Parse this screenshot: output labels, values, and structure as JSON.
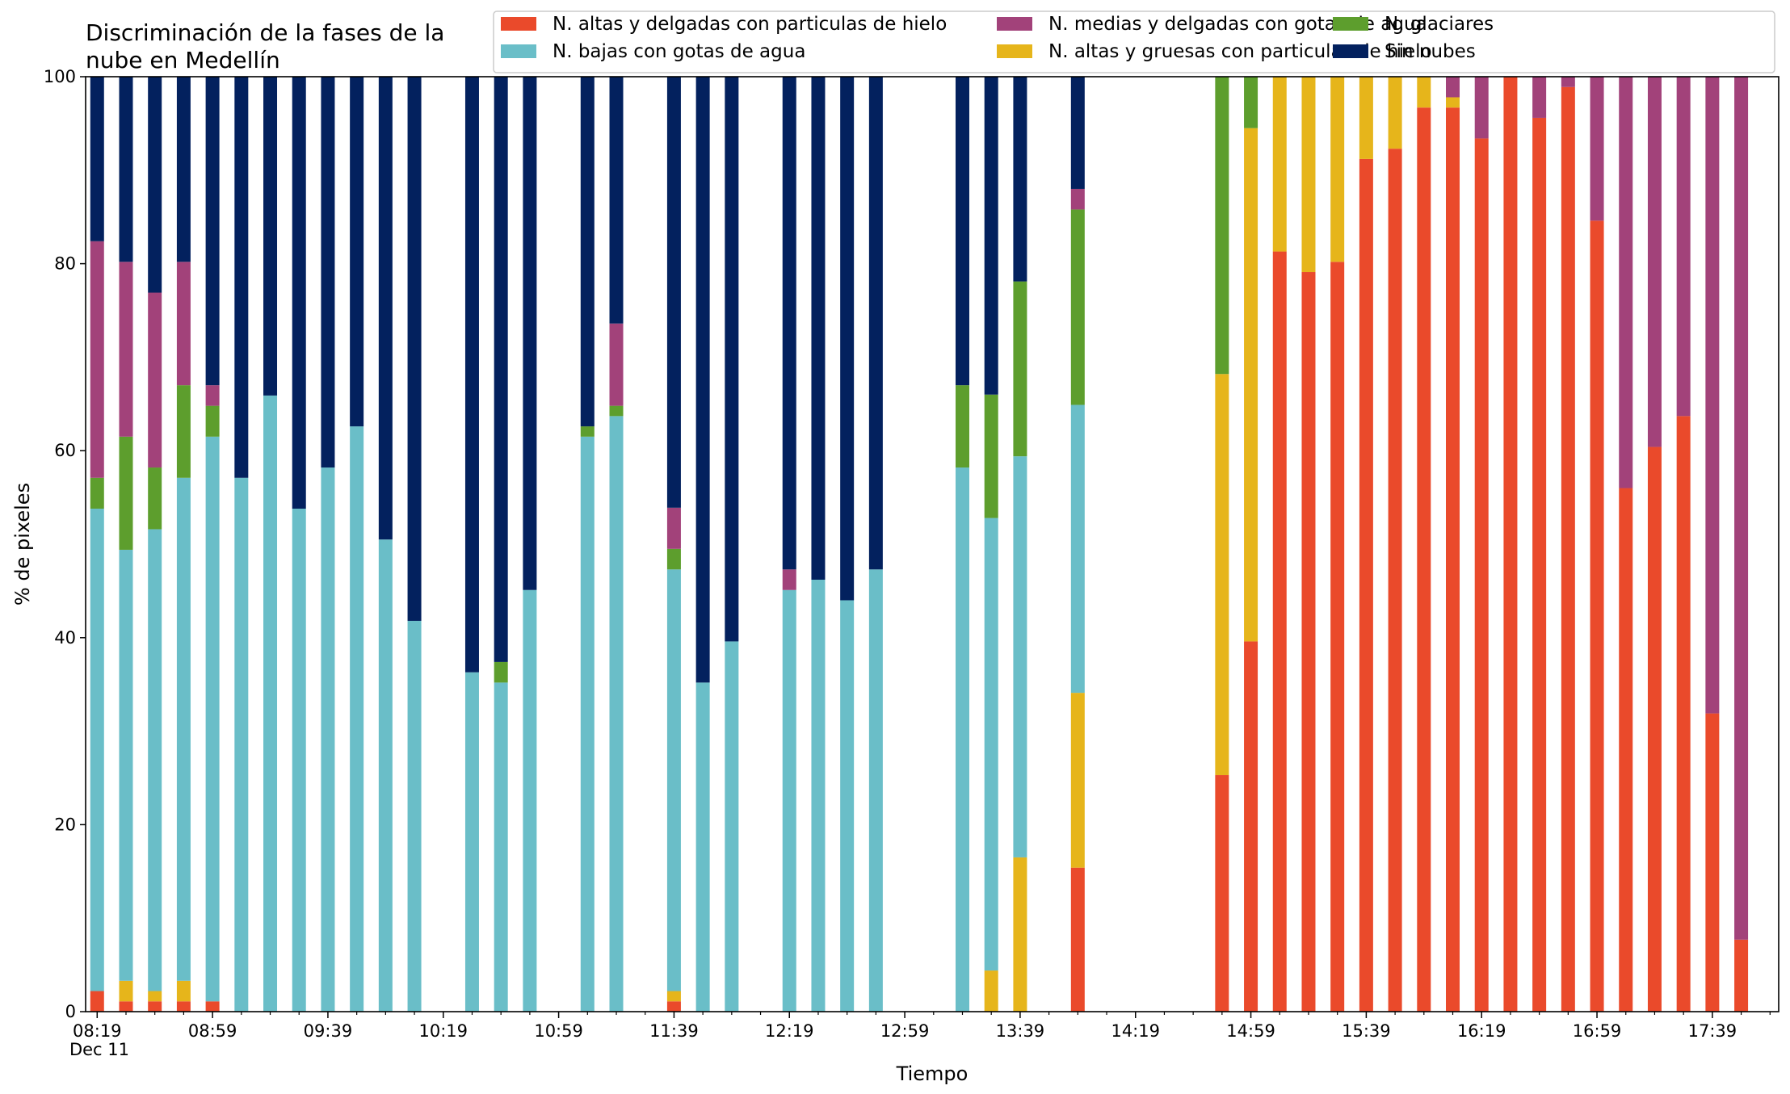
{
  "chart_data": {
    "type": "bar",
    "stacked": true,
    "title_lines": [
      "Discriminación de la fases de la",
      "nube en Medellín"
    ],
    "xlabel": "Tiempo",
    "ylabel": "% de pixeles",
    "ylim": [
      0,
      100
    ],
    "yticks": [
      0,
      20,
      40,
      60,
      80,
      100
    ],
    "x_range_minutes": [
      495,
      1082
    ],
    "x_tick_minutes": [
      499,
      539,
      579,
      619,
      659,
      699,
      739,
      779,
      819,
      859,
      899,
      939,
      979,
      1019,
      1059
    ],
    "x_tick_labels": [
      "08:19",
      "08:59",
      "09:39",
      "10:19",
      "10:59",
      "11:39",
      "12:19",
      "12:59",
      "13:39",
      "14:19",
      "14:59",
      "15:39",
      "16:19",
      "16:59",
      "17:39"
    ],
    "x_date_label": "Dec 11",
    "grid": false,
    "legend_position": "top-right",
    "series": [
      {
        "name": "N. altas y delgadas con particulas de hielo",
        "color": "#ea4a2b"
      },
      {
        "name": "N. altas y gruesas con particulas de hielo",
        "color": "#e6b51b"
      },
      {
        "name": "N. bajas con gotas de agua",
        "color": "#6abec8"
      },
      {
        "name": "N. glaciares",
        "color": "#5d9e2d"
      },
      {
        "name": "N. medias y delgadas con gotas de agua",
        "color": "#a2427a"
      },
      {
        "name": "Sin nubes",
        "color": "#03215e"
      }
    ],
    "legend_order": [
      0,
      2,
      4,
      1,
      3,
      5
    ],
    "bars": [
      {
        "time": "08:19",
        "values": [
          2.2,
          0,
          51.6,
          3.3,
          25.3,
          17.6
        ]
      },
      {
        "time": "08:29",
        "values": [
          1.1,
          2.2,
          46.1,
          12.1,
          18.7,
          19.8
        ]
      },
      {
        "time": "08:39",
        "values": [
          1.1,
          1.1,
          49.4,
          6.6,
          18.7,
          23.1
        ]
      },
      {
        "time": "08:49",
        "values": [
          1.1,
          2.2,
          53.8,
          9.9,
          13.2,
          19.8
        ]
      },
      {
        "time": "08:59",
        "values": [
          1.1,
          0,
          60.4,
          3.3,
          2.2,
          33.0
        ]
      },
      {
        "time": "09:09",
        "values": [
          0,
          0,
          57.1,
          0,
          0,
          42.9
        ]
      },
      {
        "time": "09:19",
        "values": [
          0,
          0,
          65.9,
          0,
          0,
          34.1
        ]
      },
      {
        "time": "09:29",
        "values": [
          0,
          0,
          53.8,
          0,
          0,
          46.2
        ]
      },
      {
        "time": "09:39",
        "values": [
          0,
          0,
          58.2,
          0,
          0,
          41.8
        ]
      },
      {
        "time": "09:49",
        "values": [
          0,
          0,
          62.6,
          0,
          0,
          37.4
        ]
      },
      {
        "time": "09:59",
        "values": [
          0,
          0,
          50.5,
          0,
          0,
          49.5
        ]
      },
      {
        "time": "10:09",
        "values": [
          0,
          0,
          41.8,
          0,
          0,
          58.2
        ]
      },
      {
        "time": "10:29",
        "values": [
          0,
          0,
          36.3,
          0,
          0,
          63.7
        ]
      },
      {
        "time": "10:39",
        "values": [
          0,
          0,
          35.2,
          2.2,
          0,
          62.6
        ]
      },
      {
        "time": "10:49",
        "values": [
          0,
          0,
          45.1,
          0,
          0,
          54.9
        ]
      },
      {
        "time": "11:09",
        "values": [
          0,
          0,
          61.5,
          1.1,
          0,
          37.4
        ]
      },
      {
        "time": "11:19",
        "values": [
          0,
          0,
          63.7,
          1.1,
          8.8,
          26.4
        ]
      },
      {
        "time": "11:39",
        "values": [
          1.1,
          1.1,
          45.1,
          2.2,
          4.4,
          46.1
        ]
      },
      {
        "time": "11:49",
        "values": [
          0,
          0,
          35.2,
          0,
          0,
          64.8
        ]
      },
      {
        "time": "11:59",
        "values": [
          0,
          0,
          39.6,
          0,
          0,
          60.4
        ]
      },
      {
        "time": "12:19",
        "values": [
          0,
          0,
          45.1,
          0,
          2.2,
          52.7
        ]
      },
      {
        "time": "12:29",
        "values": [
          0,
          0,
          46.2,
          0,
          0,
          53.8
        ]
      },
      {
        "time": "12:39",
        "values": [
          0,
          0,
          44.0,
          0,
          0,
          56.0
        ]
      },
      {
        "time": "12:49",
        "values": [
          0,
          0,
          47.3,
          0,
          0,
          52.7
        ]
      },
      {
        "time": "13:19",
        "values": [
          0,
          0,
          58.2,
          8.8,
          0,
          33.0
        ]
      },
      {
        "time": "13:29",
        "values": [
          0,
          4.4,
          48.4,
          13.2,
          0,
          34.0
        ]
      },
      {
        "time": "13:39",
        "values": [
          0,
          16.5,
          42.9,
          18.7,
          0,
          21.9
        ]
      },
      {
        "time": "13:59",
        "values": [
          15.4,
          18.7,
          30.8,
          20.9,
          2.2,
          12.0
        ]
      },
      {
        "time": "14:49",
        "values": [
          25.3,
          42.9,
          0,
          31.8,
          0,
          0
        ]
      },
      {
        "time": "14:59",
        "values": [
          39.6,
          54.9,
          0,
          5.5,
          0,
          0
        ]
      },
      {
        "time": "15:09",
        "values": [
          81.3,
          18.7,
          0,
          0,
          0,
          0
        ]
      },
      {
        "time": "15:19",
        "values": [
          79.1,
          20.9,
          0,
          0,
          0,
          0
        ]
      },
      {
        "time": "15:29",
        "values": [
          80.2,
          19.8,
          0,
          0,
          0,
          0
        ]
      },
      {
        "time": "15:39",
        "values": [
          91.2,
          8.8,
          0,
          0,
          0,
          0
        ]
      },
      {
        "time": "15:49",
        "values": [
          92.3,
          7.7,
          0,
          0,
          0,
          0
        ]
      },
      {
        "time": "15:59",
        "values": [
          96.7,
          3.3,
          0,
          0,
          0,
          0
        ]
      },
      {
        "time": "16:09",
        "values": [
          96.7,
          1.1,
          0,
          0,
          2.2,
          0
        ]
      },
      {
        "time": "16:19",
        "values": [
          93.4,
          0,
          0,
          0,
          6.6,
          0
        ]
      },
      {
        "time": "16:29",
        "values": [
          100,
          0,
          0,
          0,
          0,
          0
        ]
      },
      {
        "time": "16:39",
        "values": [
          95.6,
          0,
          0,
          0,
          4.4,
          0
        ]
      },
      {
        "time": "16:49",
        "values": [
          98.9,
          0,
          0,
          0,
          1.1,
          0
        ]
      },
      {
        "time": "16:59",
        "values": [
          84.6,
          0,
          0,
          0,
          15.4,
          0
        ]
      },
      {
        "time": "17:09",
        "values": [
          56.0,
          0,
          0,
          0,
          44.0,
          0
        ]
      },
      {
        "time": "17:19",
        "values": [
          60.4,
          0,
          0,
          0,
          39.6,
          0
        ]
      },
      {
        "time": "17:29",
        "values": [
          63.7,
          0,
          0,
          0,
          36.3,
          0
        ]
      },
      {
        "time": "17:39",
        "values": [
          31.9,
          0,
          0,
          0,
          68.1,
          0
        ]
      },
      {
        "time": "17:49",
        "values": [
          7.7,
          0,
          0,
          0,
          92.3,
          0
        ]
      }
    ]
  }
}
